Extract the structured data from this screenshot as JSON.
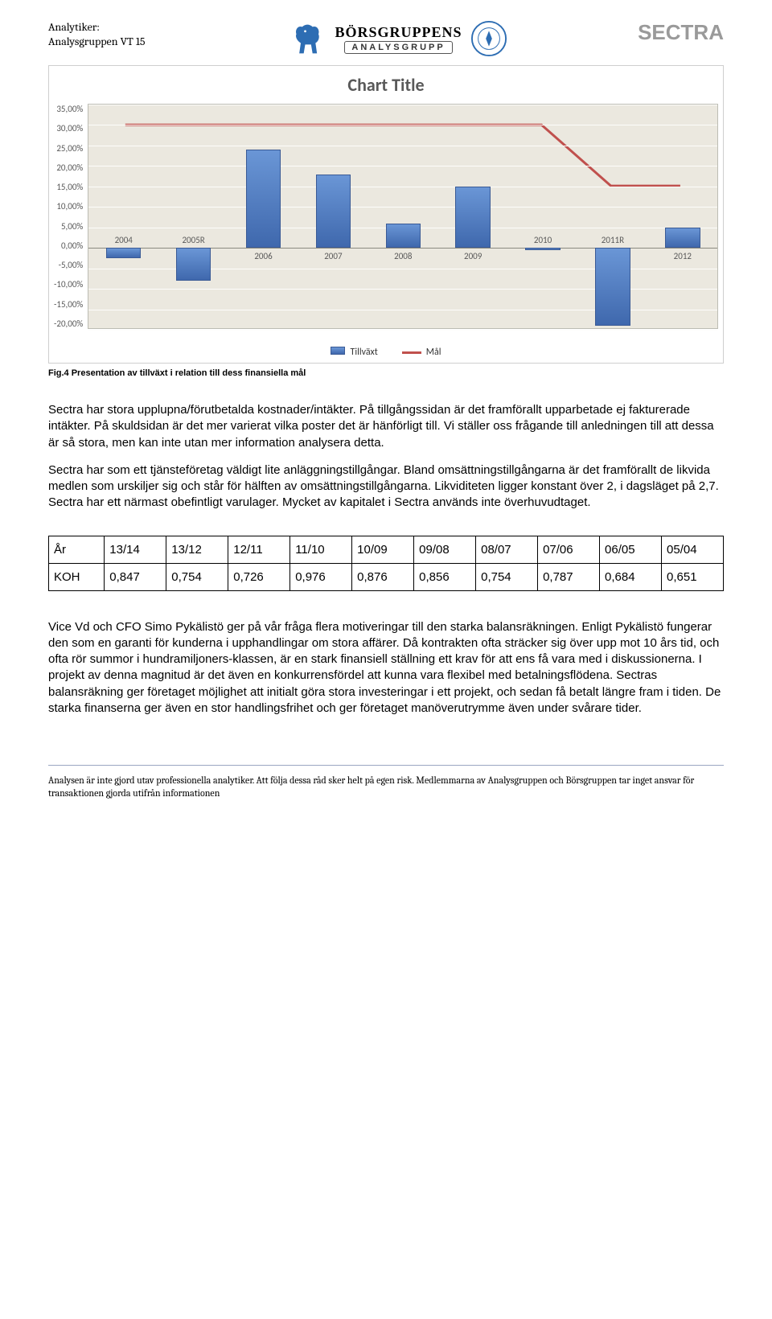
{
  "header": {
    "analyst_label": "Analytiker:",
    "analyst_group": "Analysgruppen VT 15",
    "bg_line1": "BÖRSGRUPPENS",
    "bg_line2": "ANALYSGRUPP",
    "sectra": "SECTRA"
  },
  "chart": {
    "type": "bar+line",
    "title": "Chart Title",
    "title_fontsize": 22,
    "title_color": "#595959",
    "background_color": "#ebe8df",
    "grid_color": "#fdfdfb",
    "axis_text_color": "#595959",
    "border_color": "#bcbcb3",
    "bar_color_top": "#6a96d6",
    "bar_color_bottom": "#3f68ad",
    "bar_border": "#3a5a95",
    "target_color": "#c0504d",
    "target_width": 3,
    "bar_width_ratio": 0.5,
    "ylim": [
      -20,
      35
    ],
    "categories": [
      "2004",
      "2005R",
      "2006",
      "2007",
      "2008",
      "2009",
      "2010",
      "2011R",
      "2012"
    ],
    "growth_values": [
      -2.5,
      -8,
      24,
      18,
      6,
      15,
      -0.5,
      -19,
      5
    ],
    "target_values": [
      30,
      30,
      30,
      30,
      30,
      30,
      30,
      15,
      15
    ],
    "y_ticks": [
      "35,00%",
      "30,00%",
      "25,00%",
      "20,00%",
      "15,00%",
      "10,00%",
      "5,00%",
      "0,00%",
      "-5,00%",
      "-10,00%",
      "-15,00%",
      "-20,00%"
    ],
    "y_tick_vals": [
      35,
      30,
      25,
      20,
      15,
      10,
      5,
      0,
      -5,
      -10,
      -15,
      -20
    ],
    "legend": {
      "growth": "Tillväxt",
      "target": "Mål"
    }
  },
  "fig_caption": "Fig.4 Presentation av tillväxt i relation till dess finansiella mål",
  "paragraphs": {
    "p1": "Sectra har stora upplupna/förutbetalda kostnader/intäkter. På tillgångssidan är det framförallt upparbetade ej fakturerade intäkter. På skuldsidan är det mer varierat vilka poster det är hänförligt till. Vi ställer oss frågande till anledningen till att dessa är så stora, men kan inte utan mer information analysera detta.",
    "p2": "Sectra har som ett tjänsteföretag väldigt lite anläggningstillgångar. Bland omsättningstillgångarna är det framförallt de likvida medlen som urskiljer sig och står för hälften av omsättningstillgångarna. Likviditeten ligger konstant över 2, i dagsläget på 2,7. Sectra har ett närmast obefintligt varulager. Mycket av kapitalet i Sectra används inte överhuvudtaget.",
    "p3": "Vice Vd och CFO Simo Pykälistö ger på vår fråga flera motiveringar till den starka balansräkningen. Enligt Pykälistö fungerar den som en garanti för kunderna i upphandlingar om stora affärer. Då kontrakten ofta sträcker sig över upp mot 10 års tid, och ofta rör summor i hundramiljoners-klassen, är en stark finansiell ställning ett krav för att ens få vara med i diskussionerna. I projekt av denna magnitud är det även en konkurrensfördel att kunna vara flexibel med betalningsflödena. Sectras balansräkning ger företaget möjlighet att initialt göra stora investeringar i ett projekt, och sedan få betalt längre fram i tiden. De starka finanserna ger även en stor handlingsfrihet och ger företaget manöverutrymme även under svårare tider."
  },
  "table": {
    "columns": [
      "År",
      "13/14",
      "13/12",
      "12/11",
      "11/10",
      "10/09",
      "09/08",
      "08/07",
      "07/06",
      "06/05",
      "05/04"
    ],
    "rows": [
      [
        "KOH",
        "0,847",
        "0,754",
        "0,726",
        "0,976",
        "0,876",
        "0,856",
        "0,754",
        "0,787",
        "0,684",
        "0,651"
      ]
    ]
  },
  "footer": "Analysen är inte gjord utav professionella analytiker. Att följa dessa råd sker helt på egen risk. Medlemmarna av Analysgruppen och Börsgruppen tar inget ansvar för transaktionen gjorda utifrån informationen"
}
